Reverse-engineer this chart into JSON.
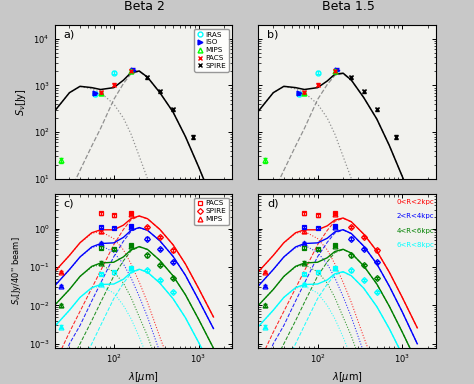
{
  "title_left": "Beta 2",
  "title_right": "Beta 1.5",
  "bg_color": "#c8c8c8",
  "panel_bg": "#f2f2ee",
  "ylabel_top": "$S_{\\nu}$[Jy]",
  "ylabel_bottom": "$S_{\\nu}$[Jy/40'' beam]",
  "xlabel": "$\\lambda$[$\\mu$m]",
  "legend_top": {
    "IRAS": {
      "color": "cyan",
      "marker": "o",
      "mfc": "none"
    },
    "ISO": {
      "color": "blue",
      "marker": ">",
      "mfc": "blue"
    },
    "MIPS": {
      "color": "green",
      "marker": "^",
      "mfc": "none"
    },
    "PACS": {
      "color": "red",
      "marker": "x",
      "mfc": "red"
    },
    "SPIRE": {
      "color": "black",
      "marker": "x",
      "mfc": "black"
    }
  },
  "ring_colors": [
    "red",
    "blue",
    "green",
    "cyan"
  ],
  "annot_labels": [
    "0<R<2kpc",
    "2<R<4kpc",
    "4<R<6kpc",
    "6<R<8kpc"
  ],
  "lambda_curve": [
    20,
    30,
    40,
    55,
    70,
    100,
    130,
    160,
    200,
    250,
    350,
    500,
    700,
    1000,
    1500
  ],
  "beta2_warm": [
    280,
    700,
    950,
    850,
    700,
    400,
    200,
    90,
    30,
    10,
    1.5,
    0.2,
    0.02,
    0.002,
    0.0001
  ],
  "beta2_cold": [
    1,
    5,
    15,
    50,
    120,
    500,
    1100,
    1800,
    2000,
    1500,
    700,
    270,
    80,
    18,
    3.0
  ],
  "beta2_total": [
    280,
    700,
    960,
    900,
    820,
    900,
    1300,
    1900,
    2050,
    1510,
    702,
    270,
    80,
    18,
    3.0
  ],
  "beta15_warm": [
    280,
    700,
    950,
    850,
    700,
    400,
    200,
    90,
    30,
    10,
    1.5,
    0.2,
    0.02,
    0.002,
    0.0001
  ],
  "beta15_cold": [
    1,
    5,
    15,
    50,
    120,
    500,
    1050,
    1650,
    1800,
    1300,
    550,
    190,
    52,
    11,
    1.7
  ],
  "beta15_total": [
    280,
    700,
    960,
    900,
    820,
    900,
    1250,
    1750,
    1840,
    1310,
    552,
    190,
    52,
    11,
    1.7
  ],
  "top_obs": {
    "IRAS": {
      "lambda": [
        60,
        100
      ],
      "flux": [
        650,
        1900
      ],
      "yerr": [
        60,
        150
      ]
    },
    "ISO": {
      "lambda": [
        60,
        170
      ],
      "flux": [
        680,
        2200
      ],
      "yerr": [
        60,
        180
      ]
    },
    "MIPS": {
      "lambda": [
        24,
        70,
        160
      ],
      "flux": [
        25,
        680,
        2000
      ],
      "yerr": [
        3,
        60,
        160
      ]
    },
    "PACS": {
      "lambda": [
        70,
        100,
        160
      ],
      "flux": [
        720,
        1050,
        2050
      ],
      "yerr": [
        60,
        90,
        170
      ]
    },
    "SPIRE": {
      "lambda": [
        250,
        350,
        500,
        850
      ],
      "flux": [
        1500,
        750,
        310,
        80
      ],
      "yerr": [
        120,
        60,
        25,
        8
      ]
    }
  },
  "ring_lambda_pacs": [
    70,
    100,
    160
  ],
  "ring_lambda_spire": [
    250,
    350,
    500
  ],
  "ring_lambda_mips": [
    24,
    70,
    160
  ],
  "ring_obs": {
    "r0": {
      "pacs": [
        2.5,
        2.2,
        2.5
      ],
      "spire": [
        1.1,
        0.6,
        0.27
      ],
      "mips": [
        0.075,
        0.85,
        2.4
      ]
    },
    "r1": {
      "pacs": [
        1.1,
        1.05,
        1.15
      ],
      "spire": [
        0.55,
        0.3,
        0.135
      ],
      "mips": [
        0.032,
        0.42,
        1.1
      ]
    },
    "r2": {
      "pacs": [
        0.32,
        0.3,
        0.37
      ],
      "spire": [
        0.2,
        0.115,
        0.052
      ],
      "mips": [
        0.01,
        0.13,
        0.36
      ]
    },
    "r3": {
      "pacs": [
        0.065,
        0.072,
        0.093
      ],
      "spire": [
        0.082,
        0.046,
        0.022
      ],
      "mips": [
        0.0028,
        0.036,
        0.093
      ]
    }
  },
  "ring_sed_b2": {
    "r0": {
      "warm": [
        0.075,
        0.2,
        0.42,
        0.75,
        0.85,
        0.55,
        0.28,
        0.12,
        0.04,
        0.012,
        0.0015,
        0.00018,
        1.5e-05,
        1.2e-06,
        6e-08
      ],
      "cold": [
        0.0003,
        0.002,
        0.007,
        0.028,
        0.08,
        0.38,
        0.95,
        1.7,
        2.1,
        1.8,
        0.95,
        0.38,
        0.12,
        0.028,
        0.005
      ],
      "total": [
        0.075,
        0.2,
        0.43,
        0.78,
        0.93,
        0.93,
        1.23,
        1.82,
        2.14,
        1.81,
        0.951,
        0.38,
        0.12,
        0.028,
        0.005
      ]
    },
    "r1": {
      "warm": [
        0.032,
        0.085,
        0.18,
        0.32,
        0.37,
        0.24,
        0.12,
        0.052,
        0.017,
        0.005,
        0.0006,
        8e-05,
        6e-06,
        5e-07,
        2e-08
      ],
      "cold": [
        0.0001,
        0.001,
        0.003,
        0.013,
        0.038,
        0.185,
        0.47,
        0.85,
        1.05,
        0.9,
        0.48,
        0.19,
        0.061,
        0.014,
        0.0025
      ],
      "total": [
        0.032,
        0.086,
        0.183,
        0.333,
        0.408,
        0.425,
        0.59,
        0.902,
        1.067,
        0.905,
        0.4806,
        0.19,
        0.061,
        0.014,
        0.0025
      ]
    },
    "r2": {
      "warm": [
        0.01,
        0.026,
        0.056,
        0.1,
        0.115,
        0.075,
        0.038,
        0.016,
        0.005,
        0.0016,
        0.0002,
        2.4e-05,
        2e-06,
        1.6e-07,
        6e-09
      ],
      "cold": [
        3e-05,
        0.0003,
        0.001,
        0.004,
        0.012,
        0.058,
        0.145,
        0.265,
        0.335,
        0.285,
        0.148,
        0.059,
        0.019,
        0.0044,
        0.00077
      ],
      "total": [
        0.01,
        0.026,
        0.057,
        0.104,
        0.127,
        0.133,
        0.183,
        0.281,
        0.34,
        0.287,
        0.148,
        0.059,
        0.019,
        0.0044,
        0.00077
      ]
    },
    "r3": {
      "warm": [
        0.0028,
        0.0074,
        0.016,
        0.028,
        0.032,
        0.021,
        0.01,
        0.0045,
        0.0015,
        0.00044,
        5.5e-05,
        6.6e-06,
        5.5e-07,
        4.4e-08,
        1.7e-09
      ],
      "cold": [
        8e-06,
        7e-05,
        0.00025,
        0.001,
        0.003,
        0.015,
        0.038,
        0.068,
        0.086,
        0.073,
        0.038,
        0.015,
        0.0048,
        0.0011,
        0.000196
      ],
      "total": [
        0.0028,
        0.0075,
        0.0162,
        0.029,
        0.035,
        0.036,
        0.048,
        0.0725,
        0.0875,
        0.0734,
        0.0381,
        0.015,
        0.0048,
        0.0011,
        0.000196
      ]
    }
  },
  "ring_sed_b15": {
    "r0": {
      "warm": [
        0.075,
        0.2,
        0.42,
        0.75,
        0.85,
        0.55,
        0.28,
        0.12,
        0.04,
        0.012,
        0.0015,
        0.00018,
        1.5e-05,
        1.2e-06,
        6e-08
      ],
      "cold": [
        0.0003,
        0.002,
        0.007,
        0.028,
        0.08,
        0.38,
        0.9,
        1.55,
        1.85,
        1.5,
        0.72,
        0.26,
        0.074,
        0.016,
        0.0026
      ],
      "total": [
        0.075,
        0.2,
        0.43,
        0.78,
        0.93,
        0.93,
        1.18,
        1.67,
        1.89,
        1.51,
        0.721,
        0.26,
        0.074,
        0.016,
        0.0026
      ]
    },
    "r1": {
      "warm": [
        0.032,
        0.085,
        0.18,
        0.32,
        0.37,
        0.24,
        0.12,
        0.052,
        0.017,
        0.005,
        0.0006,
        8e-05,
        6e-06,
        5e-07,
        2e-08
      ],
      "cold": [
        0.0001,
        0.001,
        0.003,
        0.013,
        0.038,
        0.185,
        0.44,
        0.77,
        0.92,
        0.74,
        0.35,
        0.12,
        0.032,
        0.0067,
        0.001
      ],
      "total": [
        0.032,
        0.086,
        0.183,
        0.333,
        0.408,
        0.425,
        0.56,
        0.822,
        0.937,
        0.745,
        0.3506,
        0.12,
        0.032,
        0.0067,
        0.001
      ]
    },
    "r2": {
      "warm": [
        0.01,
        0.026,
        0.056,
        0.1,
        0.115,
        0.075,
        0.038,
        0.016,
        0.005,
        0.0016,
        0.0002,
        2.4e-05,
        2e-06,
        1.6e-07,
        6e-09
      ],
      "cold": [
        3e-05,
        0.0003,
        0.001,
        0.004,
        0.012,
        0.058,
        0.136,
        0.238,
        0.285,
        0.228,
        0.107,
        0.036,
        0.0096,
        0.002,
        0.00031
      ],
      "total": [
        0.01,
        0.026,
        0.057,
        0.104,
        0.127,
        0.133,
        0.174,
        0.254,
        0.29,
        0.23,
        0.107,
        0.036,
        0.0096,
        0.002,
        0.00031
      ]
    },
    "r3": {
      "warm": [
        0.0028,
        0.0074,
        0.016,
        0.028,
        0.032,
        0.021,
        0.01,
        0.0045,
        0.0015,
        0.00044,
        5.5e-05,
        6.6e-06,
        5.5e-07,
        4.4e-08,
        1.7e-09
      ],
      "cold": [
        8e-06,
        7e-05,
        0.00025,
        0.001,
        0.003,
        0.015,
        0.036,
        0.062,
        0.074,
        0.059,
        0.028,
        0.0093,
        0.0025,
        0.00052,
        7.9e-05
      ],
      "total": [
        0.0028,
        0.0075,
        0.0162,
        0.029,
        0.035,
        0.036,
        0.046,
        0.0665,
        0.0755,
        0.0594,
        0.0281,
        0.0093,
        0.0025,
        0.00052,
        7.9e-05
      ]
    }
  }
}
